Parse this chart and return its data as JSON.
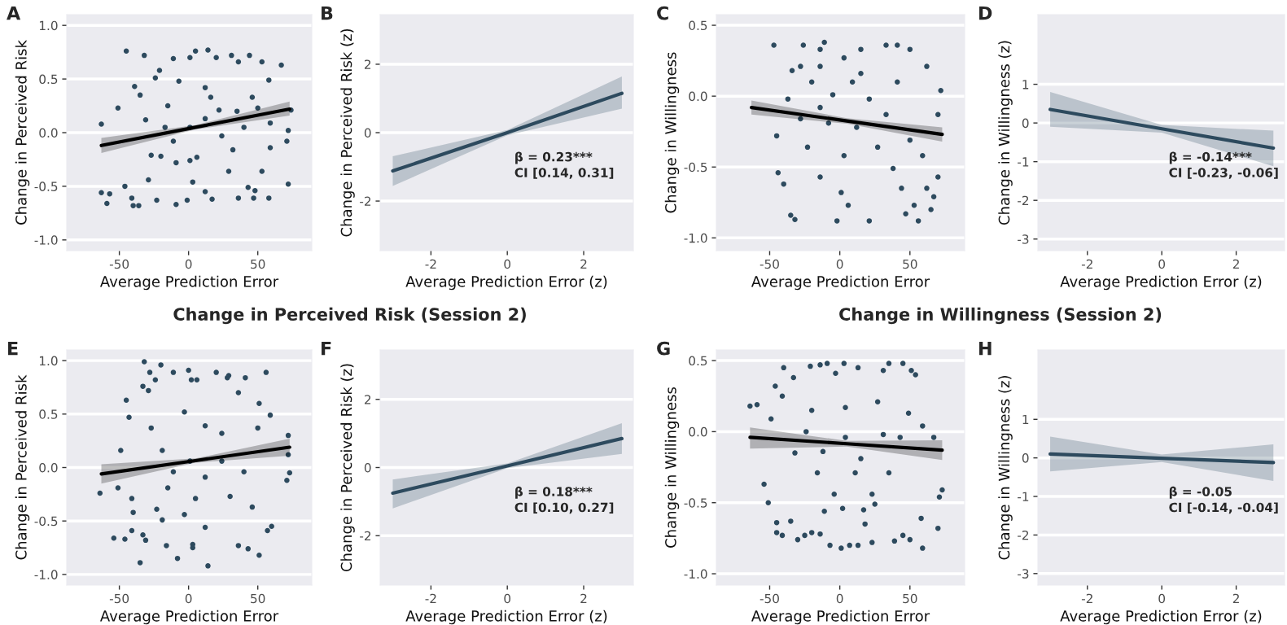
{
  "chart_data": [
    {
      "type": "scatter",
      "title": "A",
      "xlabel": "Average Prediction Error",
      "ylabel": "Change in Perceived Risk",
      "xlim": [
        -88,
        89
      ],
      "ylim": [
        -1.1,
        1.1
      ],
      "xticks": [
        -50,
        0,
        50
      ],
      "yticks": [
        {
          "value": -1.0,
          "label": "-1.0"
        },
        {
          "value": -0.5,
          "label": "-0.5"
        },
        {
          "value": 0.0,
          "label": "0.0"
        },
        {
          "value": 0.5,
          "label": "0.5"
        },
        {
          "value": 1.0,
          "label": "1.0"
        }
      ],
      "grid": "y",
      "series": [
        {
          "marker": "circle",
          "color": "#2d4a5e",
          "x": [
            -63,
            -63,
            -59,
            -57,
            -51,
            -45,
            -46,
            -41,
            -40,
            -36,
            -32,
            -39,
            -35,
            -29,
            -23,
            -31,
            -21,
            -24,
            -17,
            -20,
            -11,
            -7,
            -9,
            -1,
            1,
            5,
            3,
            14,
            12,
            12,
            17,
            20,
            22,
            29,
            31,
            36,
            35,
            36,
            44,
            43,
            47,
            48,
            53,
            53,
            58,
            58,
            59,
            59,
            67,
            71,
            72,
            72,
            74,
            -11,
            1,
            12,
            24,
            40,
            50,
            -27,
            -9,
            6,
            32,
            -15,
            16,
            46,
            1
          ],
          "values": [
            0.08,
            -0.56,
            -0.66,
            -0.57,
            0.23,
            0.76,
            -0.5,
            -0.61,
            -0.68,
            -0.68,
            0.72,
            0.43,
            0.35,
            -0.44,
            -0.63,
            0.12,
            0.58,
            0.51,
            0.05,
            -0.22,
            0.69,
            0.48,
            -0.67,
            -0.63,
            0.7,
            0.76,
            -0.46,
            0.77,
            0.42,
            -0.55,
            -0.62,
            0.7,
            0.21,
            -0.36,
            0.72,
            0.66,
            0.2,
            -0.61,
            0.72,
            -0.51,
            -0.61,
            -0.54,
            0.66,
            -0.36,
            0.49,
            -0.61,
            0.09,
            -0.14,
            0.63,
            -0.08,
            0.02,
            -0.48,
            0.21,
            -0.08,
            0.05,
            0.13,
            -0.03,
            0.05,
            0.23,
            -0.21,
            -0.28,
            -0.23,
            -0.16,
            0.25,
            0.33,
            0.33,
            -0.26
          ]
        },
        {
          "type": "line",
          "color": "#000000",
          "x": [
            -63,
            5,
            73
          ],
          "values": [
            -0.12,
            0.05,
            0.22
          ],
          "lower": [
            -0.19,
            0.03,
            0.16
          ],
          "upper": [
            -0.05,
            0.07,
            0.29
          ]
        }
      ]
    },
    {
      "type": "line",
      "title": "B",
      "xlabel": "Average Prediction Error (z)",
      "ylabel": "Change in Perceived Risk (z)",
      "xlim": [
        -3.33,
        3.3
      ],
      "ylim": [
        -3.45,
        3.45
      ],
      "xticks": [
        -2,
        0,
        2
      ],
      "yticks": [
        -2,
        0,
        2
      ],
      "grid": "y",
      "annotations": [
        "β = 0.23***\nCI [0.14, 0.31]"
      ],
      "series": [
        {
          "color": "#2d4a5e",
          "x": [
            -3,
            0,
            3
          ],
          "values": [
            -1.12,
            0,
            1.15
          ],
          "lower": [
            -1.56,
            -0.08,
            0.7
          ],
          "upper": [
            -0.69,
            0.08,
            1.64
          ]
        }
      ]
    },
    {
      "type": "scatter",
      "title": "C",
      "xlabel": "Average Prediction Error",
      "ylabel": "Change in Willingness",
      "xlim": [
        -88,
        89
      ],
      "ylim": [
        -1.09,
        0.575
      ],
      "xticks": [
        -50,
        0,
        50
      ],
      "yticks": [
        {
          "value": -1.0,
          "label": "-1.0"
        },
        {
          "value": -0.5,
          "label": "-0.5"
        },
        {
          "value": 0.0,
          "label": "0.0"
        },
        {
          "value": 0.5,
          "label": "0.5"
        }
      ],
      "grid": "y",
      "series": [
        {
          "marker": "circle",
          "color": "#2d4a5e",
          "x": [
            -47,
            -45,
            -44,
            -35,
            -32,
            -40,
            -28,
            -26,
            -14,
            -8,
            -2,
            3,
            6,
            15,
            21,
            33,
            41,
            47,
            44,
            53,
            56,
            59,
            62,
            65,
            67,
            70,
            70,
            72,
            62,
            -20,
            -14,
            -5,
            9,
            21,
            33,
            41,
            -23,
            3,
            27,
            50,
            -37,
            -14,
            15,
            50,
            -11,
            -34,
            -28,
            12,
            38,
            -14,
            1
          ],
          "values": [
            0.36,
            -0.28,
            -0.54,
            -0.84,
            -0.87,
            -0.62,
            0.21,
            0.36,
            0.33,
            -0.19,
            -0.88,
            0.27,
            -0.77,
            0.33,
            -0.88,
            0.36,
            0.36,
            -0.83,
            -0.65,
            -0.77,
            -0.88,
            -0.42,
            -0.65,
            -0.8,
            -0.71,
            -0.57,
            -0.13,
            0.04,
            0.21,
            0.1,
            -0.08,
            0.01,
            0.1,
            -0.02,
            -0.13,
            0.1,
            -0.36,
            -0.42,
            -0.36,
            -0.31,
            -0.02,
            0.21,
            0.16,
            0.33,
            0.38,
            0.18,
            -0.16,
            -0.22,
            -0.51,
            -0.57,
            -0.68
          ]
        },
        {
          "type": "line",
          "color": "#000000",
          "x": [
            -63,
            5,
            73
          ],
          "values": [
            -0.08,
            -0.175,
            -0.27
          ],
          "lower": [
            -0.13,
            -0.195,
            -0.32
          ],
          "upper": [
            -0.03,
            -0.155,
            -0.22
          ]
        }
      ]
    },
    {
      "type": "line",
      "title": "D",
      "xlabel": "Average Prediction Error (z)",
      "ylabel": "Change in Willingness (z)",
      "xlim": [
        -3.33,
        3.3
      ],
      "ylim": [
        -3.3,
        2.8
      ],
      "xticks": [
        -2,
        0,
        2
      ],
      "yticks": [
        -3,
        -2,
        -1,
        0,
        1
      ],
      "grid": "y",
      "annotations": [
        "β = -0.14***\nCI [-0.23, -0.06]"
      ],
      "series": [
        {
          "color": "#2d4a5e",
          "x": [
            -3,
            0,
            3
          ],
          "values": [
            0.35,
            -0.15,
            -0.65
          ],
          "lower": [
            -0.1,
            -0.25,
            -1.12
          ],
          "upper": [
            0.8,
            -0.05,
            -0.2
          ]
        }
      ]
    },
    {
      "type": "scatter",
      "title": "E",
      "subtitle": "Change in Perceived Risk (Session 2)",
      "xlabel": "Average Prediction Error",
      "ylabel": "Change in Perceived Risk",
      "xlim": [
        -88,
        89
      ],
      "ylim": [
        -1.1,
        1.1
      ],
      "xticks": [
        -50,
        0,
        50
      ],
      "yticks": [
        {
          "value": -1.0,
          "label": "-1.0"
        },
        {
          "value": -0.5,
          "label": "-0.5"
        },
        {
          "value": 0.0,
          "label": "0.0"
        },
        {
          "value": 0.5,
          "label": "0.5"
        },
        {
          "value": 1.0,
          "label": "1.0"
        }
      ],
      "grid": "y",
      "series": [
        {
          "marker": "circle",
          "color": "#2d4a5e",
          "x": [
            -64,
            -54,
            -51,
            -49,
            -46,
            -45,
            -43,
            -41,
            -41,
            -40,
            -35,
            -33,
            -32,
            -33,
            -31,
            -29,
            -28,
            -24,
            -20,
            -19,
            -16,
            -11,
            -8,
            0,
            3,
            3,
            2,
            6,
            14,
            12,
            20,
            28,
            29,
            36,
            36,
            41,
            43,
            51,
            51,
            56,
            57,
            60,
            59,
            72,
            73,
            71,
            72,
            -19,
            -11,
            1,
            12,
            24,
            40,
            50,
            -15,
            5,
            30,
            -27,
            12,
            -3,
            24,
            -23,
            -3,
            46
          ],
          "values": [
            -0.24,
            -0.66,
            -0.19,
            0.16,
            -0.67,
            0.63,
            0.47,
            -0.29,
            -0.59,
            -0.42,
            -0.89,
            0.76,
            0.99,
            -0.63,
            -0.68,
            0.72,
            0.89,
            0.82,
            0.96,
            -0.49,
            -0.73,
            0.89,
            -0.85,
            0.91,
            -0.72,
            -0.75,
            0.82,
            0.82,
            -0.92,
            -0.56,
            0.89,
            0.84,
            0.86,
            0.7,
            -0.73,
            0.84,
            -0.76,
            0.6,
            -0.82,
            0.89,
            -0.59,
            -0.55,
            0.49,
            0.3,
            -0.05,
            -0.12,
            0.12,
            0.16,
            -0.04,
            0.06,
            -0.09,
            0.06,
            -0.04,
            0.37,
            -0.19,
            -0.29,
            -0.27,
            0.37,
            0.39,
            0.52,
            0.32,
            -0.39,
            -0.44,
            -0.37
          ]
        },
        {
          "type": "line",
          "color": "#000000",
          "x": [
            -63,
            5,
            73
          ],
          "values": [
            -0.06,
            0.065,
            0.19
          ],
          "lower": [
            -0.15,
            0.045,
            0.11
          ],
          "upper": [
            0.03,
            0.085,
            0.27
          ]
        }
      ]
    },
    {
      "type": "line",
      "title": "F",
      "xlabel": "Average Prediction Error (z)",
      "ylabel": "Change in Perceived Risk (z)",
      "xlim": [
        -3.33,
        3.3
      ],
      "ylim": [
        -3.45,
        3.45
      ],
      "xticks": [
        -2,
        0,
        2
      ],
      "yticks": [
        -2,
        0,
        2
      ],
      "grid": "y",
      "annotations": [
        "β = 0.18***\nCI [0.10, 0.27]"
      ],
      "series": [
        {
          "color": "#2d4a5e",
          "x": [
            -3,
            0,
            3
          ],
          "values": [
            -0.75,
            0.05,
            0.85
          ],
          "lower": [
            -1.2,
            -0.02,
            0.4
          ],
          "upper": [
            -0.35,
            0.12,
            1.3
          ]
        }
      ]
    },
    {
      "type": "scatter",
      "title": "G",
      "subtitle": "Change in Willingness (Session 2)",
      "xlabel": "Average Prediction Error",
      "ylabel": "Change in Willingness",
      "xlim": [
        -88,
        89
      ],
      "ylim": [
        -1.08,
        0.575
      ],
      "xticks": [
        -50,
        0,
        50
      ],
      "yticks": [
        {
          "value": -1.0,
          "label": "-1.0"
        },
        {
          "value": -0.5,
          "label": "-0.5"
        },
        {
          "value": 0.0,
          "label": "0.0"
        },
        {
          "value": 0.5,
          "label": "0.5"
        }
      ],
      "grid": "y",
      "series": [
        {
          "marker": "circle",
          "color": "#2d4a5e",
          "x": [
            -64,
            -59,
            -54,
            -51,
            -49,
            -46,
            -45,
            -45,
            -41,
            -40,
            -41,
            -35,
            -33,
            -30,
            -25,
            -21,
            -20,
            -14,
            -14,
            -9,
            -7,
            -11,
            -3,
            1,
            3,
            2,
            7,
            13,
            13,
            17,
            18,
            23,
            25,
            31,
            35,
            39,
            45,
            45,
            50,
            51,
            54,
            59,
            58,
            59,
            67,
            70,
            71,
            73,
            -24,
            -12,
            4,
            15,
            31,
            43,
            -32,
            -16,
            11,
            35,
            -20,
            4,
            27,
            49,
            -4,
            23
          ],
          "values": [
            0.18,
            0.19,
            -0.37,
            -0.5,
            0.09,
            0.32,
            -0.64,
            -0.71,
            -0.73,
            0.45,
            0.25,
            -0.63,
            0.38,
            -0.76,
            -0.73,
            0.46,
            -0.71,
            -0.72,
            0.47,
            0.48,
            -0.8,
            -0.56,
            0.41,
            -0.82,
            0.48,
            -0.54,
            -0.8,
            -0.8,
            0.45,
            -0.55,
            -0.65,
            -0.78,
            -0.51,
            0.43,
            0.48,
            -0.77,
            0.48,
            -0.73,
            -0.76,
            0.43,
            0.4,
            -0.82,
            -0.61,
            0.04,
            -0.04,
            -0.68,
            -0.46,
            -0.41,
            0.0,
            -0.14,
            -0.04,
            -0.19,
            -0.02,
            -0.04,
            -0.15,
            -0.29,
            -0.29,
            -0.29,
            0.15,
            0.17,
            0.21,
            0.13,
            -0.44,
            -0.44
          ]
        },
        {
          "type": "line",
          "color": "#000000",
          "x": [
            -64,
            5,
            73
          ],
          "values": [
            -0.04,
            -0.085,
            -0.13
          ],
          "lower": [
            -0.12,
            -0.105,
            -0.2
          ],
          "upper": [
            0.03,
            -0.065,
            -0.06
          ]
        }
      ]
    },
    {
      "type": "line",
      "title": "H",
      "xlabel": "Average Prediction Error (z)",
      "ylabel": "Change in Willingness (z)",
      "xlim": [
        -3.33,
        3.3
      ],
      "ylim": [
        -3.3,
        2.8
      ],
      "xticks": [
        -2,
        0,
        2
      ],
      "yticks": [
        -3,
        -2,
        -1,
        0,
        1
      ],
      "grid": "y",
      "annotations": [
        "β = -0.05\nCI [-0.14, -0.04]"
      ],
      "series": [
        {
          "color": "#2d4a5e",
          "x": [
            -3,
            0,
            3
          ],
          "values": [
            0.1,
            -0.01,
            -0.12
          ],
          "lower": [
            -0.35,
            -0.11,
            -0.6
          ],
          "upper": [
            0.55,
            0.09,
            0.35
          ]
        }
      ]
    }
  ]
}
